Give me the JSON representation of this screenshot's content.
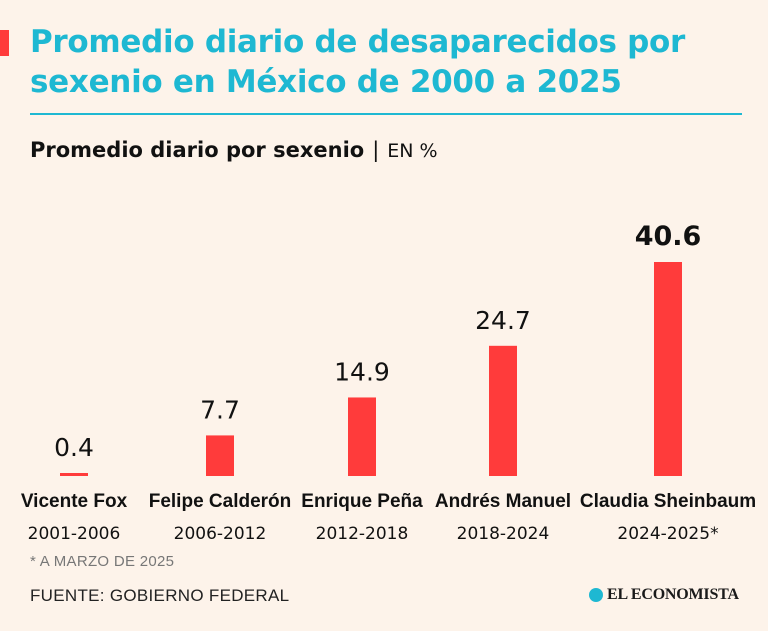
{
  "title": "Promedio diario de desaparecidos por sexenio en México de 2000 a 2025",
  "subtitle": "Promedio diario por sexenio",
  "unit": "EN %",
  "footnote": "* A MARZO DE 2025",
  "source": "FUENTE: GOBIERNO FEDERAL",
  "logo_text": "EL ECONOMISTA",
  "colors": {
    "accent": "#ff3b3b",
    "title": "#1eb8d2",
    "bar": "#ff3b3b",
    "background": "#fdf3ea"
  },
  "chart_data": {
    "type": "bar",
    "title": "Promedio diario por sexenio",
    "ylabel": "EN %",
    "categories": [
      "Vicente Fox",
      "Felipe Calderón",
      "Enrique Peña",
      "Andrés Manuel",
      "Claudia Sheinbaum"
    ],
    "periods": [
      "2001-2006",
      "2006-2012",
      "2012-2018",
      "2018-2024",
      "2024-2025*"
    ],
    "values": [
      0.4,
      7.7,
      14.9,
      24.7,
      40.6
    ],
    "value_labels": [
      "0.4",
      "7.7",
      "14.9",
      "24.7",
      "40.6"
    ],
    "highlight_index": 4,
    "ylim": [
      0,
      40.6
    ],
    "grid": false,
    "legend": "none"
  }
}
